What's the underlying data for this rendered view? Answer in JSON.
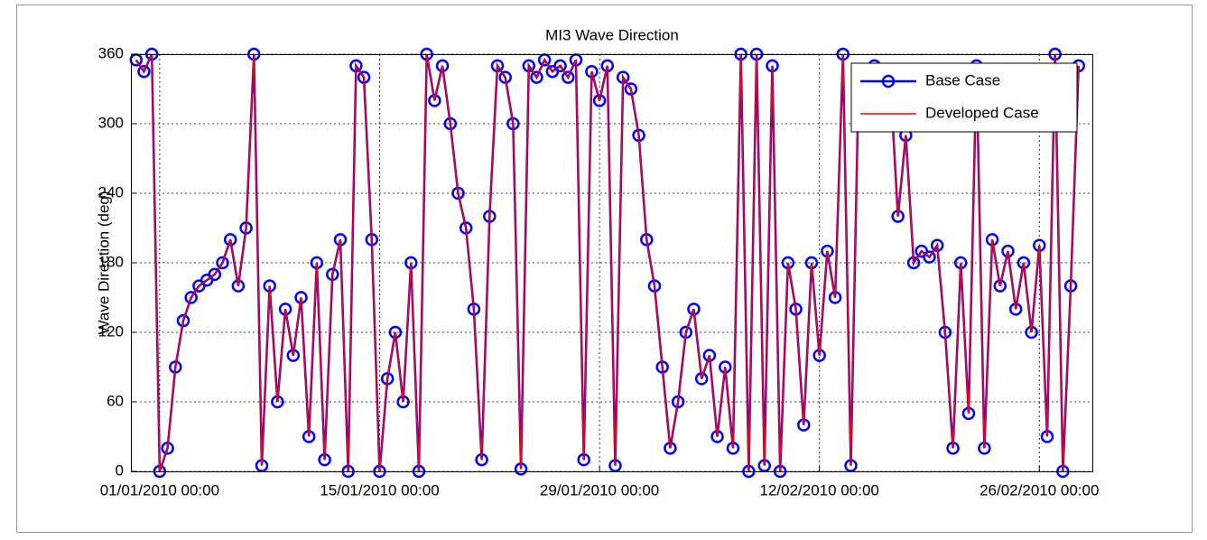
{
  "chart_data": {
    "type": "line",
    "title": "MI3 Wave Direction",
    "y_label": "Wave Direction (deg)",
    "x": [
      "2009-12-30 12:00",
      "2009-12-31 00:00",
      "2009-12-31 12:00",
      "2010-01-01 00:00",
      "2010-01-01 12:00",
      "2010-01-02 00:00",
      "2010-01-02 12:00",
      "2010-01-03 00:00",
      "2010-01-03 12:00",
      "2010-01-04 00:00",
      "2010-01-04 12:00",
      "2010-01-05 00:00",
      "2010-01-05 12:00",
      "2010-01-06 00:00",
      "2010-01-06 12:00",
      "2010-01-07 00:00",
      "2010-01-07 12:00",
      "2010-01-08 00:00",
      "2010-01-08 12:00",
      "2010-01-09 00:00",
      "2010-01-09 12:00",
      "2010-01-10 00:00",
      "2010-01-10 12:00",
      "2010-01-11 00:00",
      "2010-01-11 12:00",
      "2010-01-12 00:00",
      "2010-01-12 12:00",
      "2010-01-13 00:00",
      "2010-01-13 12:00",
      "2010-01-14 00:00",
      "2010-01-14 12:00",
      "2010-01-15 00:00",
      "2010-01-15 12:00",
      "2010-01-16 00:00",
      "2010-01-16 12:00",
      "2010-01-17 00:00",
      "2010-01-17 12:00",
      "2010-01-18 00:00",
      "2010-01-18 12:00",
      "2010-01-19 00:00",
      "2010-01-19 12:00",
      "2010-01-20 00:00",
      "2010-01-20 12:00",
      "2010-01-21 00:00",
      "2010-01-21 12:00",
      "2010-01-22 00:00",
      "2010-01-22 12:00",
      "2010-01-23 00:00",
      "2010-01-23 12:00",
      "2010-01-24 00:00",
      "2010-01-24 12:00",
      "2010-01-25 00:00",
      "2010-01-25 12:00",
      "2010-01-26 00:00",
      "2010-01-26 12:00",
      "2010-01-27 00:00",
      "2010-01-27 12:00",
      "2010-01-28 00:00",
      "2010-01-28 12:00",
      "2010-01-29 00:00",
      "2010-01-29 12:00",
      "2010-01-30 00:00",
      "2010-01-30 12:00",
      "2010-01-31 00:00",
      "2010-01-31 12:00",
      "2010-02-01 00:00",
      "2010-02-01 12:00",
      "2010-02-02 00:00",
      "2010-02-02 12:00",
      "2010-02-03 00:00",
      "2010-02-03 12:00",
      "2010-02-04 00:00",
      "2010-02-04 12:00",
      "2010-02-05 00:00",
      "2010-02-05 12:00",
      "2010-02-06 00:00",
      "2010-02-06 12:00",
      "2010-02-07 00:00",
      "2010-02-07 12:00",
      "2010-02-08 00:00",
      "2010-02-08 12:00",
      "2010-02-09 00:00",
      "2010-02-09 12:00",
      "2010-02-10 00:00",
      "2010-02-10 12:00",
      "2010-02-11 00:00",
      "2010-02-11 12:00",
      "2010-02-12 00:00",
      "2010-02-12 12:00",
      "2010-02-13 00:00",
      "2010-02-13 12:00",
      "2010-02-14 00:00",
      "2010-02-14 12:00",
      "2010-02-15 00:00",
      "2010-02-15 12:00",
      "2010-02-16 00:00",
      "2010-02-16 12:00",
      "2010-02-17 00:00",
      "2010-02-17 12:00",
      "2010-02-18 00:00",
      "2010-02-18 12:00",
      "2010-02-19 00:00",
      "2010-02-19 12:00",
      "2010-02-20 00:00",
      "2010-02-20 12:00",
      "2010-02-21 00:00",
      "2010-02-21 12:00",
      "2010-02-22 00:00",
      "2010-02-22 12:00",
      "2010-02-23 00:00",
      "2010-02-23 12:00",
      "2010-02-24 00:00",
      "2010-02-24 12:00",
      "2010-02-25 00:00",
      "2010-02-25 12:00",
      "2010-02-26 00:00",
      "2010-02-26 12:00",
      "2010-02-27 00:00",
      "2010-02-27 12:00",
      "2010-02-28 00:00",
      "2010-02-28 12:00"
    ],
    "series": [
      {
        "name": "Base Case",
        "color": "#0000ff",
        "marker": "circle",
        "values": [
          355,
          345,
          360,
          0,
          20,
          90,
          130,
          150,
          160,
          165,
          170,
          180,
          200,
          160,
          210,
          360,
          5,
          160,
          60,
          140,
          100,
          150,
          30,
          180,
          10,
          170,
          200,
          0,
          350,
          340,
          200,
          0,
          80,
          120,
          60,
          180,
          0,
          360,
          320,
          350,
          300,
          240,
          210,
          140,
          10,
          220,
          350,
          340,
          300,
          2,
          350,
          340,
          355,
          345,
          350,
          340,
          355,
          10,
          345,
          320,
          350,
          5,
          340,
          330,
          290,
          200,
          160,
          90,
          20,
          60,
          120,
          140,
          80,
          100,
          30,
          90,
          20,
          360,
          0,
          360,
          5,
          350,
          0,
          180,
          140,
          40,
          180,
          100,
          190,
          150,
          360,
          5,
          340,
          320,
          350,
          310,
          340,
          220,
          290,
          180,
          190,
          185,
          195,
          120,
          20,
          180,
          50,
          350,
          20,
          200,
          160,
          190,
          140,
          180,
          120,
          195,
          30,
          360,
          0,
          160,
          350
        ]
      },
      {
        "name": "Developed Case",
        "color": "#ff0000",
        "values": [
          355,
          345,
          360,
          0,
          20,
          90,
          130,
          150,
          160,
          165,
          170,
          180,
          200,
          160,
          210,
          360,
          5,
          160,
          60,
          140,
          100,
          150,
          30,
          180,
          10,
          170,
          200,
          0,
          350,
          340,
          200,
          0,
          80,
          120,
          60,
          180,
          0,
          360,
          320,
          350,
          300,
          240,
          210,
          140,
          10,
          220,
          350,
          340,
          300,
          2,
          350,
          340,
          355,
          345,
          350,
          340,
          355,
          10,
          345,
          320,
          350,
          5,
          340,
          330,
          290,
          200,
          160,
          90,
          20,
          60,
          120,
          140,
          80,
          100,
          30,
          90,
          20,
          360,
          0,
          360,
          5,
          350,
          0,
          180,
          140,
          40,
          180,
          100,
          190,
          150,
          360,
          5,
          340,
          320,
          350,
          310,
          340,
          220,
          290,
          180,
          190,
          185,
          195,
          120,
          20,
          180,
          50,
          350,
          20,
          200,
          160,
          190,
          140,
          180,
          120,
          195,
          30,
          360,
          0,
          160,
          350
        ]
      }
    ],
    "xlim": [
      "2009-12-30 04:00",
      "2010-03-01 09:00"
    ],
    "xticks": [
      {
        "value": "2010-01-01 00:00",
        "label": "01/01/2010 00:00"
      },
      {
        "value": "2010-01-15 00:00",
        "label": "15/01/2010 00:00"
      },
      {
        "value": "2010-01-29 00:00",
        "label": "29/01/2010 00:00"
      },
      {
        "value": "2010-02-12 00:00",
        "label": "12/02/2010 00:00"
      },
      {
        "value": "2010-02-26 00:00",
        "label": "26/02/2010 00:00"
      }
    ],
    "ylim": [
      0,
      360
    ],
    "yticks": [
      0,
      60,
      120,
      180,
      240,
      300,
      360
    ],
    "grid": true,
    "legend": "upper right"
  }
}
